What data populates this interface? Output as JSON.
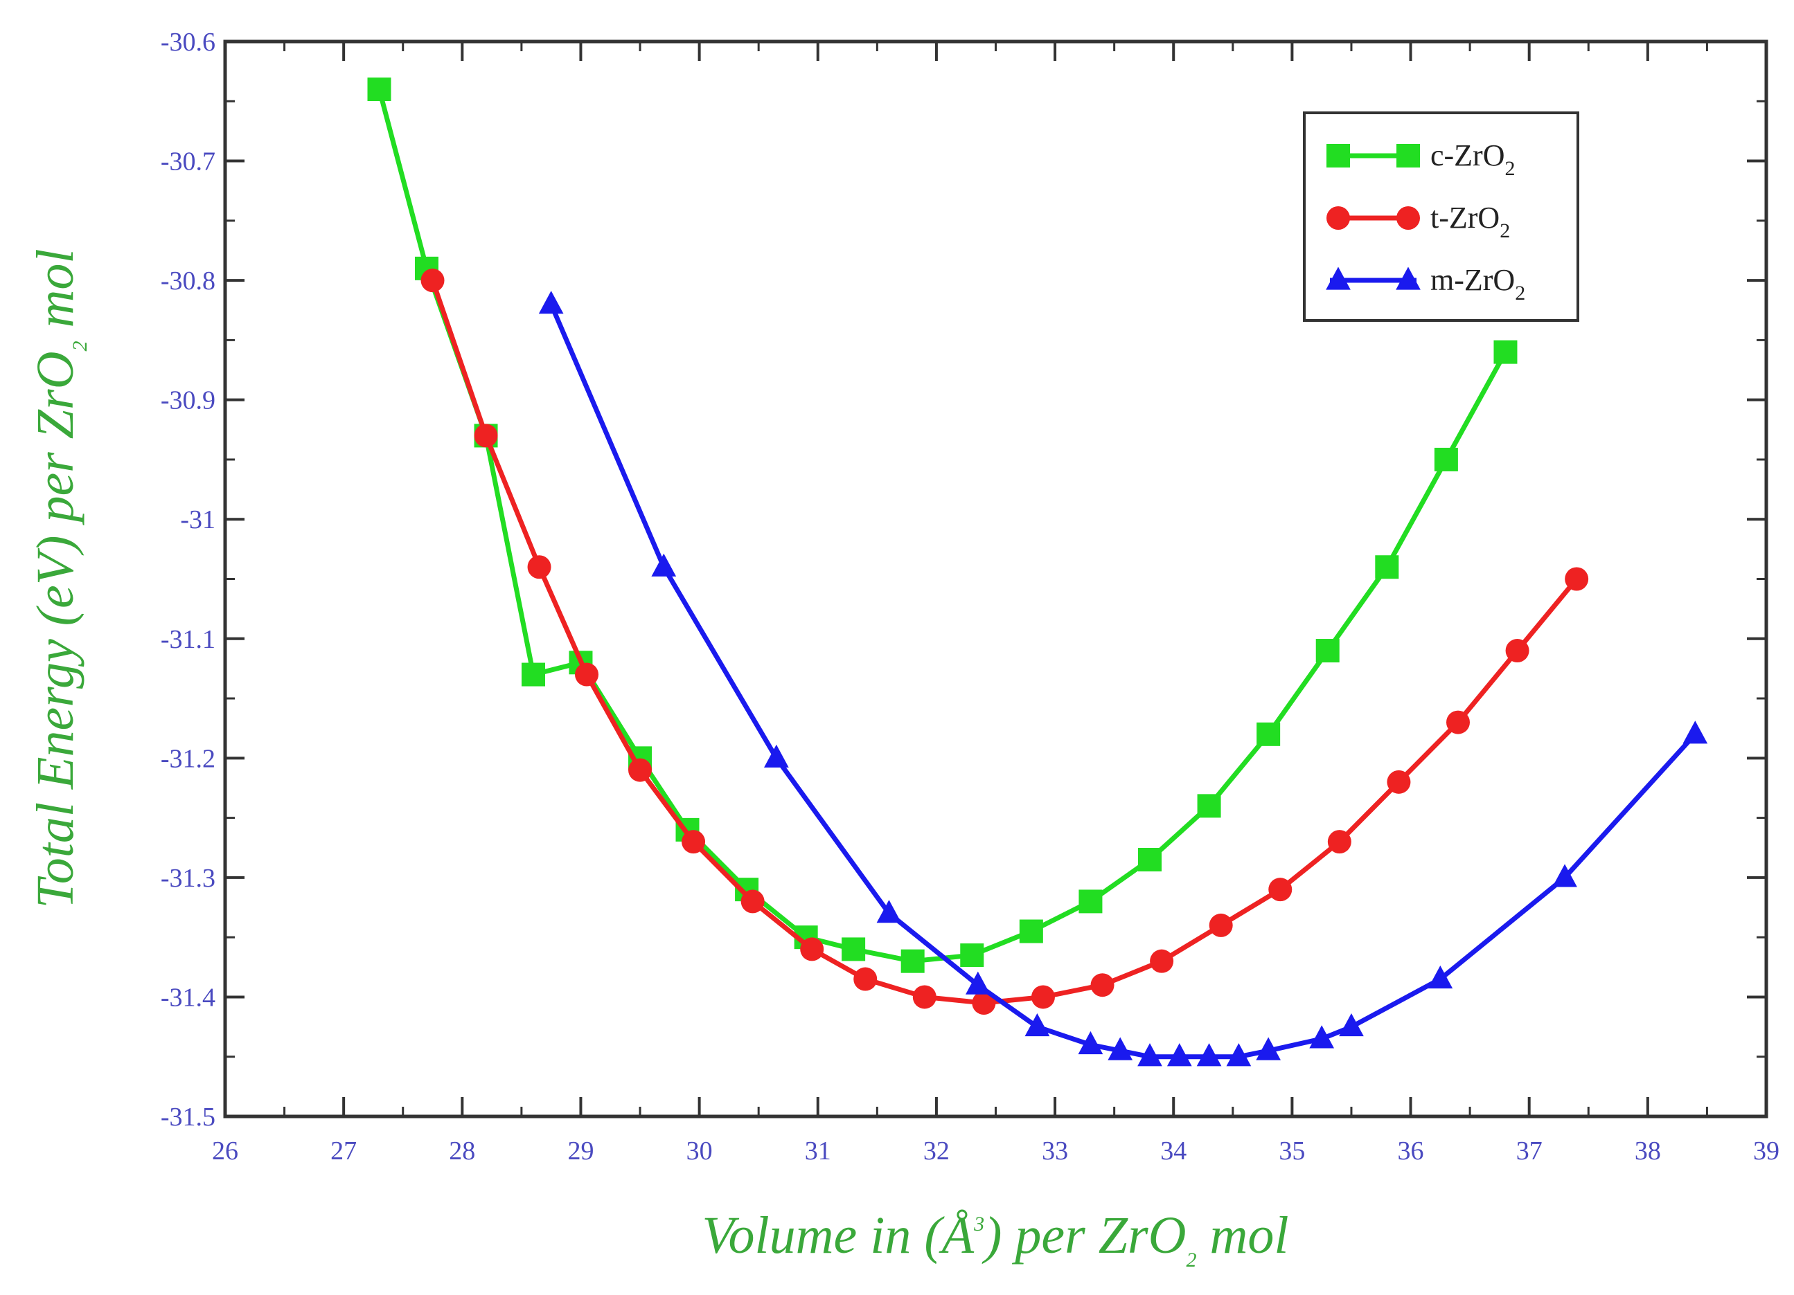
{
  "chart_data": {
    "type": "line",
    "title": "",
    "xlabel": "Volume in (Å",
    "xlabel_sup": "3",
    "xlabel_rest": ") per ZrO",
    "xlabel_sub": "2",
    "xlabel_end": " mol",
    "ylabel": "Total Energy (eV) per ZrO",
    "ylabel_sub": "2",
    "ylabel_end": " mol",
    "xlim": [
      26,
      39
    ],
    "ylim": [
      -31.5,
      -30.6
    ],
    "x_ticks": [
      26,
      27,
      28,
      29,
      30,
      31,
      32,
      33,
      34,
      35,
      36,
      37,
      38,
      39
    ],
    "x_tick_labels": [
      "26",
      "27",
      "28",
      "29",
      "30",
      "31",
      "32",
      "33",
      "34",
      "35",
      "36",
      "37",
      "38",
      "39"
    ],
    "y_ticks": [
      -30.6,
      -30.7,
      -30.8,
      -30.9,
      -31.0,
      -31.1,
      -31.2,
      -31.3,
      -31.4,
      -31.5
    ],
    "y_tick_labels": [
      "-30.6",
      "-30.7",
      "-30.8",
      "-30.9",
      "-31",
      "-31.1",
      "-31.2",
      "-31.3",
      "-31.4",
      "-31.5"
    ],
    "grid": false,
    "legend_position": "top-right",
    "series": [
      {
        "name": "c-ZrO",
        "name_sub": "2",
        "color": "#22dd22",
        "marker": "square",
        "x": [
          27.3,
          27.7,
          28.2,
          28.6,
          29.0,
          29.5,
          29.9,
          30.4,
          30.9,
          31.3,
          31.8,
          32.3,
          32.8,
          33.3,
          33.8,
          34.3,
          34.8,
          35.3,
          35.8,
          36.3,
          36.8
        ],
        "y": [
          -30.64,
          -30.79,
          -30.93,
          -31.13,
          -31.12,
          -31.2,
          -31.26,
          -31.31,
          -31.35,
          -31.36,
          -31.37,
          -31.365,
          -31.345,
          -31.32,
          -31.285,
          -31.24,
          -31.18,
          -31.11,
          -31.04,
          -30.95,
          -30.86
        ]
      },
      {
        "name": "t-ZrO",
        "name_sub": "2",
        "color": "#ee2222",
        "marker": "circle",
        "x": [
          27.75,
          28.2,
          28.65,
          29.05,
          29.5,
          29.95,
          30.45,
          30.95,
          31.4,
          31.9,
          32.4,
          32.9,
          33.4,
          33.9,
          34.4,
          34.9,
          35.4,
          35.9,
          36.4,
          36.9,
          37.4
        ],
        "y": [
          -30.8,
          -30.93,
          -31.04,
          -31.13,
          -31.21,
          -31.27,
          -31.32,
          -31.36,
          -31.385,
          -31.4,
          -31.405,
          -31.4,
          -31.39,
          -31.37,
          -31.34,
          -31.31,
          -31.27,
          -31.22,
          -31.17,
          -31.11,
          -31.05
        ]
      },
      {
        "name": "m-ZrO",
        "name_sub": "2",
        "color": "#1a1aee",
        "marker": "triangle",
        "x": [
          28.75,
          29.7,
          30.65,
          31.6,
          32.35,
          32.85,
          33.3,
          33.55,
          33.8,
          34.05,
          34.3,
          34.55,
          34.8,
          35.25,
          35.5,
          36.25,
          37.3,
          38.4
        ],
        "y": [
          -30.82,
          -31.04,
          -31.2,
          -31.33,
          -31.39,
          -31.425,
          -31.44,
          -31.445,
          -31.45,
          -31.45,
          -31.45,
          -31.45,
          -31.445,
          -31.435,
          -31.425,
          -31.385,
          -31.3,
          -31.18
        ]
      }
    ]
  }
}
